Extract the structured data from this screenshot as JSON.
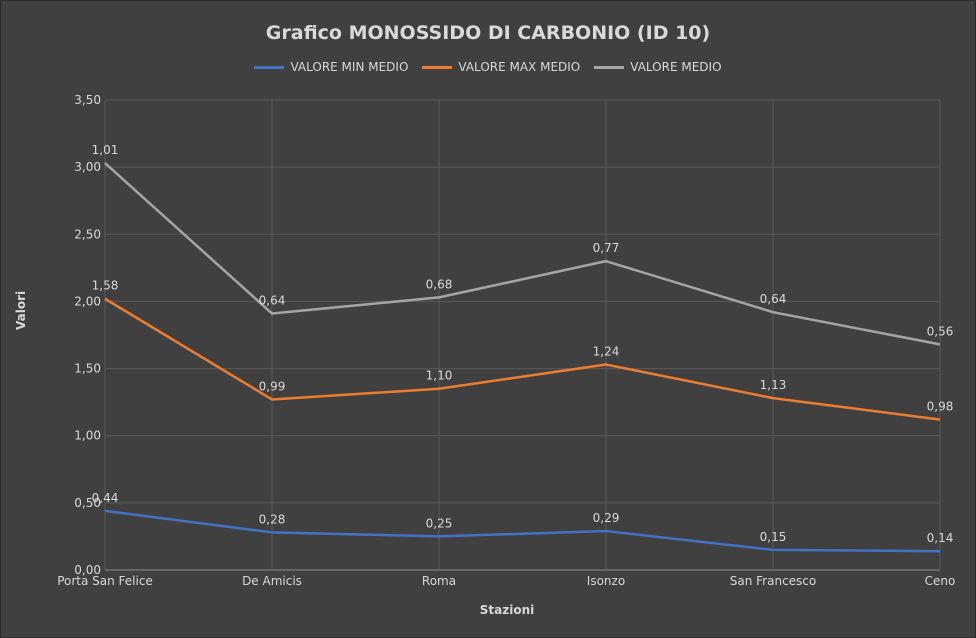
{
  "chart_data": {
    "type": "line",
    "title": "Grafico MONOSSIDO DI CARBONIO (ID 10)",
    "xlabel": "Stazioni",
    "ylabel": "Valori",
    "categories": [
      "Porta San Felice",
      "De Amicis",
      "Roma",
      "Isonzo",
      "San Francesco",
      "Ceno"
    ],
    "ylim": [
      0,
      3.5
    ],
    "yticks": [
      "0,00",
      "0,50",
      "1,00",
      "1,50",
      "2,00",
      "2,50",
      "3,00",
      "3,50"
    ],
    "grid": true,
    "legend": "top",
    "series": [
      {
        "name": "VALORE MIN MEDIO",
        "color": "#4472c4",
        "values": [
          0.44,
          0.28,
          0.25,
          0.29,
          0.15,
          0.14
        ],
        "labels": [
          "0,44",
          "0,28",
          "0,25",
          "0,29",
          "0,15",
          "0,14"
        ]
      },
      {
        "name": "VALORE MAX MEDIO",
        "color": "#ed7d31",
        "values": [
          2.02,
          1.27,
          1.35,
          1.53,
          1.28,
          1.12
        ],
        "labels": [
          "1,58",
          "0,99",
          "1,10",
          "1,24",
          "1,13",
          "0,98"
        ]
      },
      {
        "name": "VALORE MEDIO",
        "color": "#a5a5a5",
        "values": [
          3.03,
          1.91,
          2.03,
          2.3,
          1.92,
          1.68
        ],
        "labels": [
          "1,01",
          "0,64",
          "0,68",
          "0,77",
          "0,64",
          "0,56"
        ]
      }
    ]
  }
}
